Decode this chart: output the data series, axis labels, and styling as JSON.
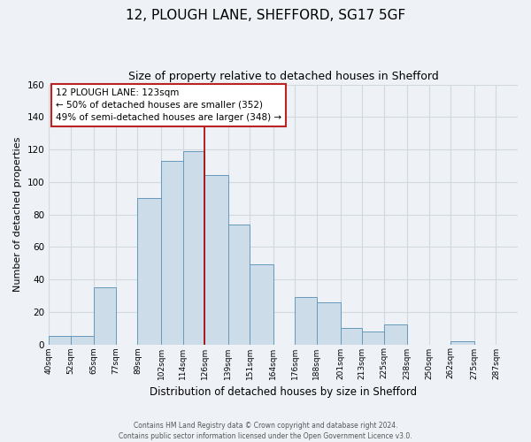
{
  "title_line1": "12, PLOUGH LANE, SHEFFORD, SG17 5GF",
  "title_line2": "Size of property relative to detached houses in Shefford",
  "xlabel": "Distribution of detached houses by size in Shefford",
  "ylabel": "Number of detached properties",
  "footnote_line1": "Contains HM Land Registry data © Crown copyright and database right 2024.",
  "footnote_line2": "Contains public sector information licensed under the Open Government Licence v3.0.",
  "bin_labels": [
    "40sqm",
    "52sqm",
    "65sqm",
    "77sqm",
    "89sqm",
    "102sqm",
    "114sqm",
    "126sqm",
    "139sqm",
    "151sqm",
    "164sqm",
    "176sqm",
    "188sqm",
    "201sqm",
    "213sqm",
    "225sqm",
    "238sqm",
    "250sqm",
    "262sqm",
    "275sqm",
    "287sqm"
  ],
  "bin_edges": [
    40,
    52,
    65,
    77,
    89,
    102,
    114,
    126,
    139,
    151,
    164,
    176,
    188,
    201,
    213,
    225,
    238,
    250,
    262,
    275,
    287,
    299
  ],
  "bar_heights": [
    5,
    5,
    35,
    0,
    90,
    113,
    119,
    104,
    74,
    49,
    0,
    29,
    26,
    10,
    8,
    12,
    0,
    0,
    2,
    0,
    0
  ],
  "bar_color": "#ccdce8",
  "bar_edge_color": "#6699bb",
  "property_label": "12 PLOUGH LANE: 123sqm",
  "annotation_line1": "← 50% of detached houses are smaller (352)",
  "annotation_line2": "49% of semi-detached houses are larger (348) →",
  "vline_color": "#aa0000",
  "vline_x": 126,
  "ylim": [
    0,
    160
  ],
  "yticks": [
    0,
    20,
    40,
    60,
    80,
    100,
    120,
    140,
    160
  ],
  "background_color": "#eef2f7",
  "grid_color": "#d0d8e0",
  "annotation_box_color": "#ffffff",
  "annotation_box_edge": "#bb2222",
  "title1_fontsize": 11,
  "title2_fontsize": 9.5
}
